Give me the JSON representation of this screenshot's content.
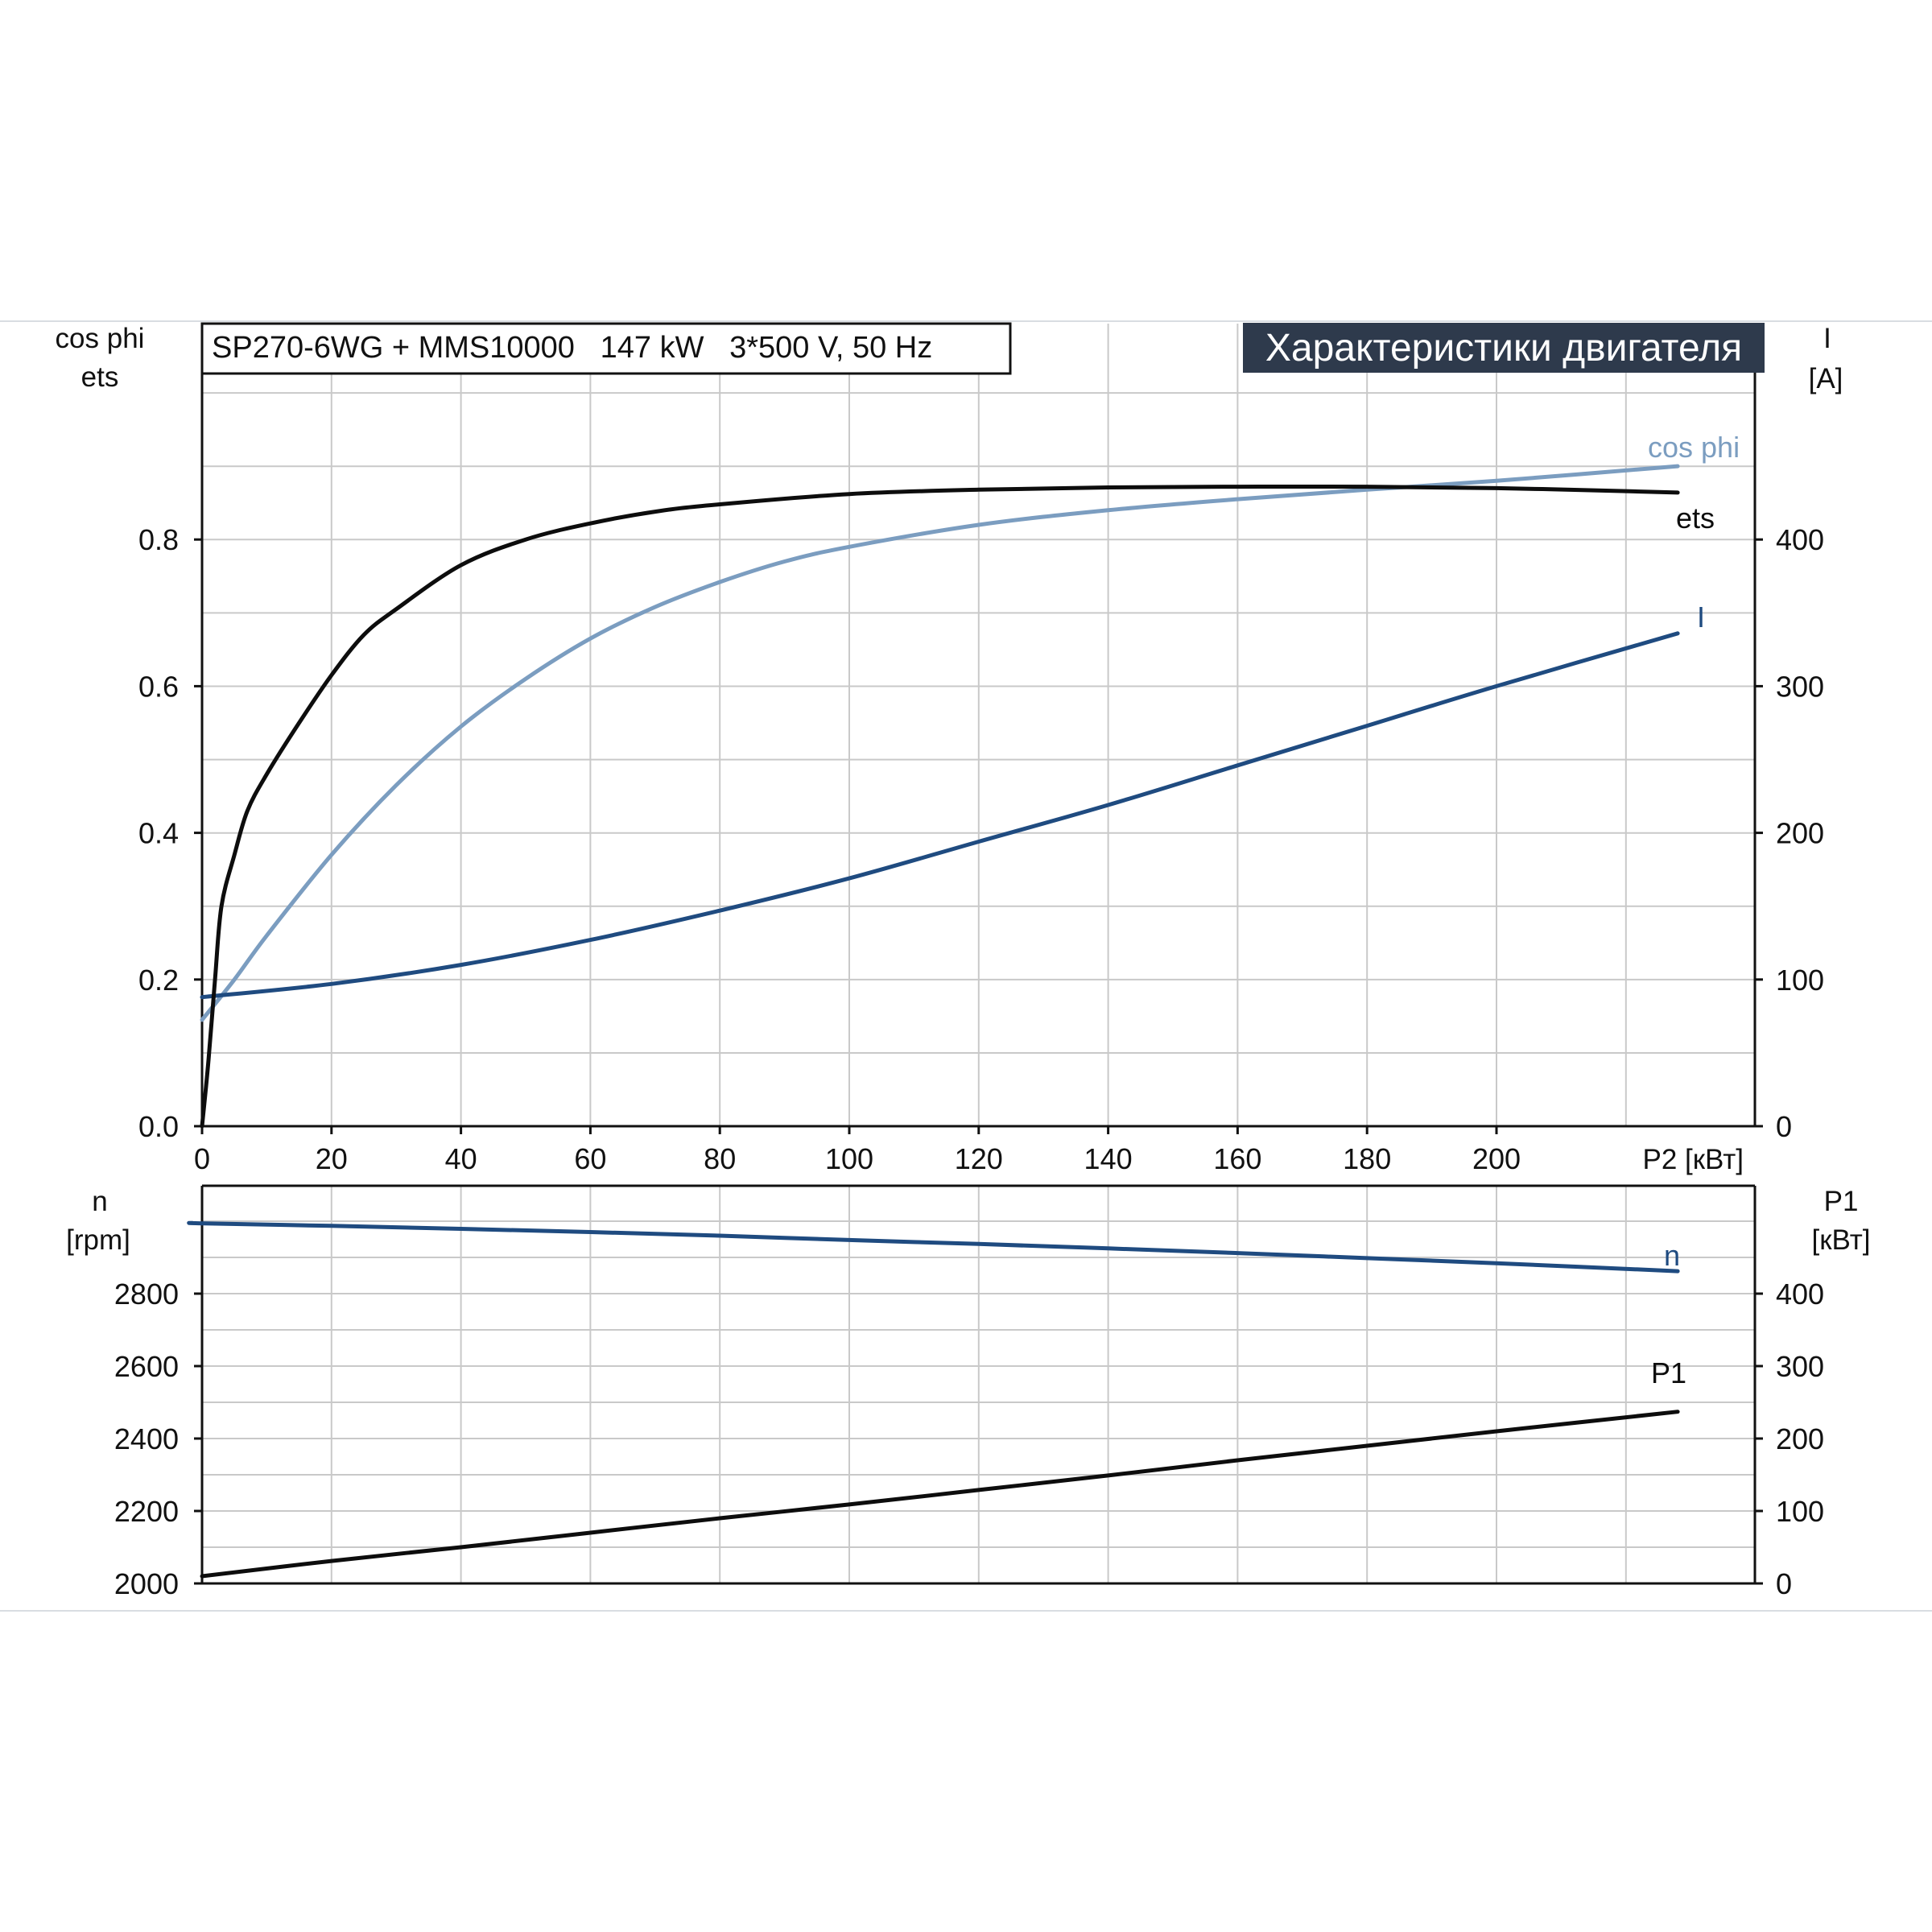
{
  "header": {
    "info": "SP270-6WG + MMS10000   147 kW   3*500 V, 50 Hz",
    "title": "Характеристики двигателя"
  },
  "colors": {
    "eta": "#0d0d0d",
    "cos_phi": "#7b9dc0",
    "current": "#1f4b80",
    "speed": "#1f4b80",
    "p1": "#0d0d0d",
    "title_bg": "#2e3a4c"
  },
  "chart_data": [
    {
      "type": "line",
      "title": "Характеристики двигателя",
      "xlabel": "P2 [кВт]",
      "x_ticks": [
        "0",
        "20",
        "40",
        "60",
        "80",
        "100",
        "120",
        "140",
        "160",
        "180",
        "200"
      ],
      "xlim": [
        0,
        240
      ],
      "left_axis": {
        "label_lines": [
          "cos phi",
          "ets"
        ],
        "ylim": [
          0,
          1.0
        ],
        "ticks": [
          0.0,
          0.2,
          0.4,
          0.6,
          0.8
        ],
        "tick_labels": [
          "0.0",
          "0.2",
          "0.4",
          "0.6",
          "0.8"
        ]
      },
      "right_axis": {
        "label_lines": [
          "I",
          "[A]"
        ],
        "ylim": [
          0,
          500
        ],
        "ticks": [
          0,
          100,
          200,
          300,
          400
        ],
        "tick_labels": [
          "0",
          "100",
          "200",
          "300",
          "400"
        ]
      },
      "grid": true,
      "series": [
        {
          "name": "ets",
          "axis": "left",
          "color_key": "eta",
          "x": [
            0,
            1,
            2,
            3,
            5,
            7,
            10,
            15,
            20,
            25,
            30,
            40,
            50,
            60,
            70,
            80,
            100,
            120,
            140,
            160,
            180,
            200,
            220,
            228
          ],
          "y": [
            0.0,
            0.09,
            0.2,
            0.3,
            0.37,
            0.43,
            0.48,
            0.55,
            0.615,
            0.67,
            0.705,
            0.765,
            0.8,
            0.822,
            0.838,
            0.848,
            0.862,
            0.868,
            0.871,
            0.872,
            0.872,
            0.87,
            0.866,
            0.864
          ]
        },
        {
          "name": "cos phi",
          "axis": "left",
          "color_key": "cos_phi",
          "x": [
            0,
            5,
            10,
            20,
            30,
            40,
            50,
            60,
            70,
            80,
            90,
            100,
            120,
            140,
            160,
            180,
            200,
            228
          ],
          "y": [
            0.145,
            0.2,
            0.26,
            0.37,
            0.465,
            0.545,
            0.61,
            0.665,
            0.708,
            0.742,
            0.77,
            0.79,
            0.82,
            0.84,
            0.855,
            0.868,
            0.88,
            0.9
          ]
        },
        {
          "name": "I",
          "axis": "right",
          "color_key": "current",
          "x": [
            0,
            20,
            40,
            60,
            80,
            100,
            120,
            140,
            160,
            180,
            200,
            228
          ],
          "y": [
            88,
            97,
            110,
            127,
            147,
            169,
            194,
            219,
            246,
            273,
            300,
            336
          ]
        }
      ]
    },
    {
      "type": "line",
      "xlim": [
        0,
        240
      ],
      "left_axis": {
        "label_lines": [
          "n",
          "[rpm]"
        ],
        "ylim": [
          2000,
          3000
        ],
        "ticks": [
          2000,
          2200,
          2400,
          2600,
          2800
        ],
        "tick_labels": [
          "2000",
          "2200",
          "2400",
          "2600",
          "2800"
        ]
      },
      "right_axis": {
        "label_lines": [
          "P1",
          "[кВт]"
        ],
        "ylim": [
          0,
          500
        ],
        "ticks": [
          0,
          100,
          200,
          300,
          400
        ],
        "tick_labels": [
          "0",
          "100",
          "200",
          "300",
          "400"
        ]
      },
      "grid": true,
      "series": [
        {
          "name": "n",
          "axis": "left",
          "color_key": "speed",
          "x": [
            -1.5,
            0,
            20,
            40,
            60,
            80,
            100,
            120,
            140,
            160,
            180,
            200,
            228
          ],
          "y": [
            2995,
            2994,
            2987,
            2979,
            2970,
            2960,
            2948,
            2937,
            2925,
            2912,
            2898,
            2884,
            2862
          ]
        },
        {
          "name": "P1",
          "axis": "right",
          "color_key": "p1",
          "x": [
            0,
            20,
            40,
            60,
            80,
            100,
            120,
            140,
            160,
            180,
            200,
            228
          ],
          "y": [
            10,
            31,
            50,
            70,
            90,
            109,
            129,
            149,
            170,
            190,
            210,
            237
          ]
        }
      ]
    }
  ]
}
